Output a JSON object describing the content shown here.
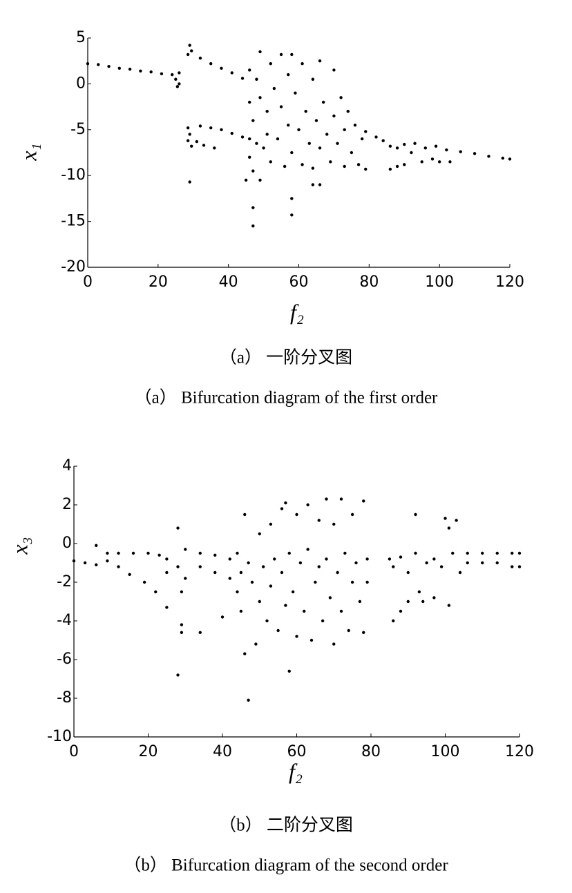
{
  "chart_data": [
    {
      "type": "scatter",
      "xlabel": "f₂",
      "ylabel": "x₁",
      "caption": "（a） 一阶分叉图",
      "caption_en": "（a） Bifurcation diagram of the first order",
      "color": "#000000",
      "xlim": [
        0,
        120
      ],
      "ylim": [
        -20,
        5
      ],
      "xticks": [
        0,
        20,
        40,
        60,
        80,
        100,
        120
      ],
      "yticks": [
        -20,
        -15,
        -10,
        -5,
        0,
        5
      ],
      "x": [
        0,
        3,
        6,
        9,
        12,
        15,
        18,
        21,
        24,
        25,
        25.5,
        26,
        26,
        28.5,
        29,
        29.5,
        28.5,
        29,
        29.5,
        28.5,
        29,
        32,
        35,
        38,
        41,
        44,
        32,
        35,
        38,
        41,
        44,
        31,
        33,
        36,
        46,
        46,
        46,
        46,
        47,
        47,
        48,
        48,
        49,
        49,
        50,
        51,
        51,
        52,
        52,
        53,
        54,
        55,
        55,
        56,
        57,
        57,
        58,
        58,
        59,
        60,
        61,
        61,
        62,
        63,
        64,
        64,
        65,
        66,
        66,
        67,
        68,
        69,
        70,
        70,
        71,
        72,
        73,
        73,
        74,
        75,
        76,
        77,
        78,
        79,
        79,
        45,
        47,
        47,
        49,
        58,
        58,
        64,
        66,
        82,
        84,
        86,
        86,
        88,
        88,
        90,
        90,
        92,
        93,
        95,
        96,
        98,
        99,
        100,
        102,
        103,
        106,
        110,
        114,
        118,
        120
      ],
      "values": [
        2.2,
        2.1,
        1.9,
        1.7,
        1.6,
        1.4,
        1.3,
        1.1,
        1.0,
        0.5,
        -0.3,
        1.2,
        0.0,
        3.2,
        4.2,
        3.6,
        -4.8,
        -5.5,
        -6.8,
        -6.2,
        -10.7,
        2.8,
        2.2,
        1.7,
        1.2,
        0.6,
        -4.6,
        -4.8,
        -5.0,
        -5.4,
        -5.8,
        -6.3,
        -6.7,
        -7.0,
        1.5,
        -2,
        -6,
        -8,
        -4,
        -9.5,
        0.5,
        -6.5,
        3.5,
        -1.5,
        -7,
        -3,
        -5.5,
        2.2,
        -8.5,
        -0.5,
        -6,
        3.2,
        -2.5,
        -9,
        1,
        -4.5,
        3.2,
        -7.5,
        -1,
        -5,
        -8.8,
        2.2,
        -3,
        -6.5,
        0.5,
        -9.2,
        -4,
        2.5,
        -7,
        -2,
        -5.5,
        -8.5,
        1.5,
        -3.5,
        -6.5,
        -1.5,
        -9,
        -5,
        -3,
        -7.5,
        -4.5,
        -8.8,
        -6,
        -5.2,
        -9.3,
        -10.5,
        -13.5,
        -15.5,
        -10.5,
        -12.5,
        -14.3,
        -11,
        -11,
        -5.8,
        -6.2,
        -6.8,
        -9.3,
        -9,
        -7,
        -6.6,
        -8.8,
        -7.5,
        -6.5,
        -8.5,
        -7,
        -8.2,
        -6.8,
        -8.5,
        -7.2,
        -8.5,
        -7.4,
        -7.6,
        -7.9,
        -8.1,
        -8.2
      ]
    },
    {
      "type": "scatter",
      "xlabel": "f₂",
      "ylabel": "x₃",
      "caption": "（b） 二阶分叉图",
      "caption_en": "（b） Bifurcation diagram of the second order",
      "color": "#000000",
      "xlim": [
        0,
        120
      ],
      "ylim": [
        -10,
        4
      ],
      "xticks": [
        0,
        20,
        40,
        60,
        80,
        100,
        120
      ],
      "yticks": [
        -10,
        -8,
        -6,
        -4,
        -2,
        0,
        2,
        4
      ],
      "x": [
        0,
        3,
        6,
        6,
        9,
        9,
        12,
        12,
        15,
        16,
        19,
        20,
        22,
        23,
        25,
        25,
        25,
        28,
        28,
        29,
        29,
        28,
        29,
        30,
        30,
        34,
        34,
        34,
        38,
        38,
        40,
        42,
        42,
        44,
        44,
        45,
        45,
        46,
        46,
        47,
        47,
        48,
        49,
        50,
        50,
        51,
        52,
        53,
        53,
        54,
        55,
        56,
        56,
        57,
        57,
        58,
        58,
        59,
        60,
        60,
        61,
        62,
        63,
        63,
        64,
        65,
        66,
        66,
        67,
        68,
        68,
        69,
        70,
        70,
        71,
        72,
        72,
        73,
        74,
        75,
        75,
        76,
        77,
        78,
        78,
        79,
        79,
        85,
        86,
        86,
        88,
        88,
        90,
        90,
        92,
        92,
        93,
        94,
        95,
        97,
        97,
        99,
        100,
        101,
        101,
        102,
        103,
        104,
        106,
        106,
        110,
        110,
        114,
        114,
        118,
        118,
        120,
        120
      ],
      "values": [
        -0.9,
        -1.0,
        -1.1,
        -0.1,
        -0.5,
        -0.9,
        -1.2,
        -0.5,
        -1.6,
        -0.5,
        -2.0,
        -0.5,
        -2.5,
        -0.6,
        -3.3,
        -0.8,
        -1.5,
        0.8,
        -1.2,
        -2.5,
        -4.2,
        -6.8,
        -4.6,
        -0.3,
        -1.8,
        -0.5,
        -1.2,
        -4.6,
        -0.6,
        -1.5,
        -3.8,
        -0.8,
        -1.8,
        -0.5,
        -2.5,
        -1.5,
        -3.5,
        1.5,
        -5.7,
        -8.1,
        -1,
        -2,
        -5.2,
        0.5,
        -3,
        -1.2,
        -4,
        1,
        -2.2,
        -0.8,
        -4.5,
        1.8,
        -1.5,
        2.1,
        -3.2,
        -6.6,
        -0.5,
        -2.5,
        1.5,
        -4.8,
        -1,
        -3.5,
        2,
        -0.3,
        -5,
        -2,
        1.2,
        -1.2,
        -4,
        2.3,
        -0.8,
        -2.8,
        -5.2,
        1,
        -1.5,
        2.3,
        -3.5,
        -0.5,
        -4.5,
        1.5,
        -2,
        -1,
        -3,
        2.2,
        -4.6,
        -0.8,
        -2,
        -0.8,
        -1.2,
        -4,
        -0.7,
        -3.5,
        -1.5,
        -3,
        1.5,
        -0.5,
        -2.5,
        -3,
        -1,
        -0.8,
        -2.8,
        -1.2,
        1.3,
        0.8,
        -3.2,
        -0.5,
        1.2,
        -1.5,
        -0.5,
        -1,
        -0.5,
        -1,
        -0.5,
        -1,
        -0.5,
        -1.2,
        -0.5,
        -1.2
      ]
    }
  ]
}
